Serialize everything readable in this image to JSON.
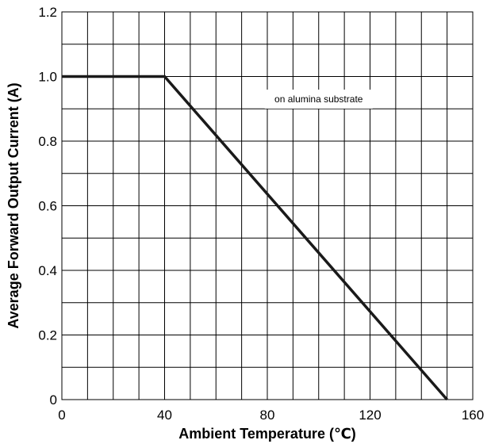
{
  "chart_data": {
    "type": "line",
    "title": "",
    "xlabel": "Ambient Temperature (℃)",
    "ylabel": "Average Forward Output Current (A)",
    "xlim": [
      0,
      160
    ],
    "ylim": [
      0,
      1.2
    ],
    "x_ticks": [
      0,
      40,
      80,
      120,
      160
    ],
    "x_tick_labels": [
      "0",
      "40",
      "80",
      "120",
      "160"
    ],
    "y_ticks": [
      0,
      0.2,
      0.4,
      0.6,
      0.8,
      1.0,
      1.2
    ],
    "y_tick_labels": [
      "0",
      "0.2",
      "0.4",
      "0.6",
      "0.8",
      "1.0",
      "1.2"
    ],
    "grid": true,
    "x_grid_step": 10,
    "y_grid_step": 0.1,
    "series": [
      {
        "x": [
          0,
          40,
          150
        ],
        "y": [
          1.0,
          1.0,
          0
        ],
        "color": "#1a1a1a"
      }
    ],
    "annotations": [
      {
        "text": "on alumina substrate",
        "x": 100,
        "y": 0.93
      }
    ]
  }
}
